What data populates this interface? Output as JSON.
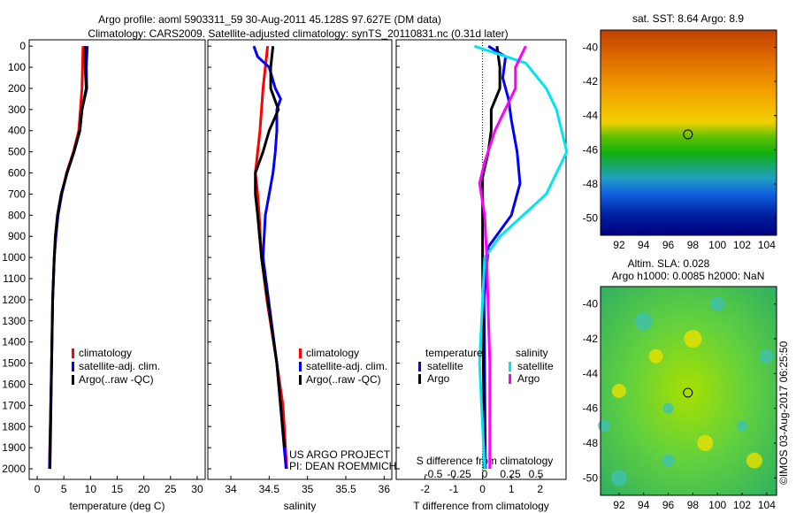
{
  "title_line1": "Argo profile: aoml 5903311_59 30-Aug-2011 45.128S 97.627E (DM data)",
  "title_line2": "Climatology: CARS2009. Satellite-adjusted climatology: synTS_20110831.nc (0.31d later)",
  "credit": "US ARGO PROJECT",
  "pi": "PI: DEAN ROEMMICH",
  "watermark": "©IMOS 03-Aug-2017 06:25:50",
  "colors": {
    "climatology": "#ff0000",
    "satellite": "#0000ff",
    "argo": "#000000",
    "sal_sat": "#00e5ee",
    "sal_argo": "#ff00ff"
  },
  "chart_data": [
    {
      "type": "line",
      "xlabel": "temperature (deg C)",
      "ylabel": "",
      "xlim": [
        -1.5,
        31.5
      ],
      "ylim": [
        2050,
        -30
      ],
      "xticks": [
        0,
        5,
        10,
        15,
        20,
        25,
        30
      ],
      "yticks": [
        0,
        100,
        200,
        300,
        400,
        500,
        600,
        700,
        800,
        900,
        1000,
        1100,
        1200,
        1300,
        1400,
        1500,
        1600,
        1700,
        1800,
        1900,
        2000
      ],
      "legend": [
        "climatology",
        "satellite-adj. clim.",
        "Argo(..raw -QC)"
      ],
      "series": [
        {
          "name": "climatology",
          "color": "#ff0000",
          "points": [
            [
              8.6,
              0
            ],
            [
              8.5,
              100
            ],
            [
              8.4,
              200
            ],
            [
              8.1,
              300
            ],
            [
              7.8,
              400
            ],
            [
              6.8,
              500
            ],
            [
              5.5,
              600
            ],
            [
              4.6,
              700
            ],
            [
              3.9,
              800
            ],
            [
              3.5,
              900
            ],
            [
              3.2,
              1000
            ],
            [
              2.9,
              1200
            ],
            [
              2.7,
              1500
            ],
            [
              2.3,
              2000
            ]
          ]
        },
        {
          "name": "satellite-adj. clim.",
          "color": "#0000ff",
          "points": [
            [
              9.4,
              0
            ],
            [
              9.2,
              100
            ],
            [
              9.3,
              200
            ],
            [
              8.4,
              300
            ],
            [
              8.0,
              400
            ],
            [
              6.9,
              500
            ],
            [
              5.6,
              600
            ],
            [
              4.6,
              700
            ],
            [
              3.9,
              800
            ],
            [
              3.5,
              900
            ],
            [
              3.2,
              1000
            ],
            [
              2.9,
              1200
            ],
            [
              2.7,
              1500
            ],
            [
              2.3,
              2000
            ]
          ]
        },
        {
          "name": "Argo(..raw -QC)",
          "color": "#000000",
          "points": [
            [
              9.0,
              0
            ],
            [
              9.0,
              100
            ],
            [
              9.2,
              200
            ],
            [
              8.4,
              300
            ],
            [
              8.0,
              400
            ],
            [
              6.9,
              500
            ],
            [
              5.6,
              600
            ],
            [
              4.5,
              700
            ],
            [
              3.8,
              800
            ],
            [
              3.4,
              900
            ],
            [
              3.2,
              1000
            ],
            [
              2.9,
              1200
            ],
            [
              2.7,
              1500
            ],
            [
              2.5,
              1850
            ],
            [
              2.4,
              2000
            ]
          ]
        }
      ]
    },
    {
      "type": "line",
      "xlabel": "salinity",
      "ylabel": "",
      "xlim": [
        33.7,
        36.1
      ],
      "ylim": [
        2050,
        -30
      ],
      "xticks": [
        34,
        34.5,
        35,
        35.5,
        36
      ],
      "legend": [
        "climatology",
        "satellite-adj. clim.",
        "Argo(..raw -QC)"
      ],
      "series": [
        {
          "name": "climatology",
          "color": "#ff0000",
          "points": [
            [
              34.48,
              0
            ],
            [
              34.45,
              100
            ],
            [
              34.42,
              200
            ],
            [
              34.4,
              300
            ],
            [
              34.38,
              400
            ],
            [
              34.35,
              500
            ],
            [
              34.32,
              600
            ],
            [
              34.35,
              700
            ],
            [
              34.37,
              800
            ],
            [
              34.4,
              1000
            ],
            [
              34.47,
              1200
            ],
            [
              34.6,
              1500
            ],
            [
              34.68,
              1700
            ],
            [
              34.73,
              2000
            ]
          ]
        },
        {
          "name": "satellite-adj. clim.",
          "color": "#0000ff",
          "points": [
            [
              34.3,
              0
            ],
            [
              34.35,
              50
            ],
            [
              34.5,
              100
            ],
            [
              34.58,
              200
            ],
            [
              34.65,
              250
            ],
            [
              34.6,
              300
            ],
            [
              34.6,
              400
            ],
            [
              34.58,
              500
            ],
            [
              34.55,
              600
            ],
            [
              34.5,
              700
            ],
            [
              34.45,
              800
            ],
            [
              34.42,
              1000
            ],
            [
              34.6,
              1500
            ],
            [
              34.72,
              2000
            ]
          ]
        },
        {
          "name": "Argo(..raw -QC)",
          "color": "#000000",
          "points": [
            [
              34.55,
              0
            ],
            [
              34.52,
              100
            ],
            [
              34.52,
              200
            ],
            [
              34.62,
              300
            ],
            [
              34.5,
              400
            ],
            [
              34.42,
              500
            ],
            [
              34.32,
              600
            ],
            [
              34.32,
              700
            ],
            [
              34.35,
              800
            ],
            [
              34.4,
              1000
            ],
            [
              34.6,
              1500
            ],
            [
              34.7,
              1900
            ]
          ]
        }
      ]
    },
    {
      "type": "line",
      "xlabel": "T difference from climatology",
      "x2label": "S difference from climatology",
      "xlim": [
        -3,
        2.9
      ],
      "ylim": [
        2050,
        -30
      ],
      "xticks": [
        -2,
        -1,
        0,
        1,
        2
      ],
      "x2ticks": [
        -0.5,
        -0.25,
        0,
        0.25,
        0.5
      ],
      "legend_temperature": {
        "title": "temperature",
        "items": [
          "satellite",
          "Argo"
        ]
      },
      "legend_salinity": {
        "title": "salinity",
        "items": [
          "satellite",
          "Argo"
        ]
      },
      "series": [
        {
          "name": "temperature satellite",
          "color": "#0000ff",
          "points": [
            [
              0.2,
              0
            ],
            [
              0.8,
              50
            ],
            [
              0.7,
              150
            ],
            [
              0.9,
              250
            ],
            [
              1.0,
              350
            ],
            [
              1.2,
              500
            ],
            [
              1.3,
              650
            ],
            [
              1.0,
              800
            ],
            [
              0.2,
              950
            ],
            [
              0.05,
              1200
            ],
            [
              0.1,
              2000
            ]
          ]
        },
        {
          "name": "temperature Argo",
          "color": "#000000",
          "points": [
            [
              0.5,
              0
            ],
            [
              0.6,
              100
            ],
            [
              0.6,
              200
            ],
            [
              0.3,
              300
            ],
            [
              0.3,
              400
            ],
            [
              0.2,
              500
            ],
            [
              0.0,
              620
            ],
            [
              0.0,
              800
            ],
            [
              0.0,
              1000
            ],
            [
              0.05,
              2000
            ]
          ]
        },
        {
          "name": "salinity satellite",
          "color": "#00e5ee",
          "points": [
            [
              -0.1,
              0
            ],
            [
              0.4,
              80
            ],
            [
              0.6,
              200
            ],
            [
              0.7,
              300
            ],
            [
              0.8,
              500
            ],
            [
              0.6,
              700
            ],
            [
              0.15,
              900
            ],
            [
              0.0,
              1000
            ],
            [
              -0.05,
              1500
            ],
            [
              0.0,
              2000
            ]
          ]
        },
        {
          "name": "salinity Argo",
          "color": "#ff00ff",
          "points": [
            [
              0.4,
              0
            ],
            [
              0.3,
              100
            ],
            [
              0.3,
              200
            ],
            [
              0.1,
              400
            ],
            [
              0.0,
              550
            ],
            [
              -0.05,
              650
            ],
            [
              0.0,
              800
            ],
            [
              0.02,
              1000
            ],
            [
              0.05,
              1500
            ],
            [
              0.05,
              2000
            ]
          ]
        }
      ]
    },
    {
      "type": "heatmap",
      "title": "sat. SST: 8.64 Argo: 8.9",
      "xlim": [
        90.5,
        104.8
      ],
      "ylim": [
        -51,
        -39
      ],
      "xticks": [
        92,
        94,
        96,
        98,
        100,
        102,
        104
      ],
      "yticks": [
        -40,
        -42,
        -44,
        -46,
        -48,
        -50
      ],
      "marker": [
        97.6,
        -45.1
      ]
    },
    {
      "type": "heatmap",
      "title1": "Altim. SLA: 0.028",
      "title2": "Argo h1000: 0.0085 h2000: NaN",
      "xlim": [
        90.5,
        104.8
      ],
      "ylim": [
        -51,
        -39
      ],
      "xticks": [
        92,
        94,
        96,
        98,
        100,
        102,
        104
      ],
      "yticks": [
        -40,
        -42,
        -44,
        -46,
        -48,
        -50
      ],
      "marker": [
        97.6,
        -45.1
      ]
    }
  ]
}
